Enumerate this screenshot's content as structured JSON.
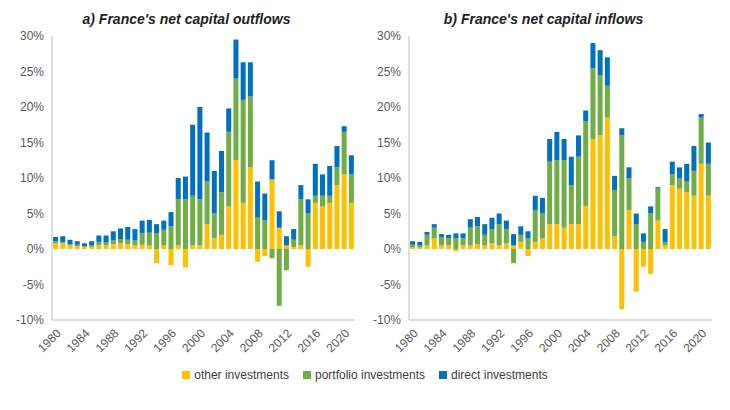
{
  "chart_data": [
    {
      "type": "bar",
      "title": "a) France's net capital outflows",
      "stacked": true,
      "grid": false,
      "legend": "bottom",
      "categories": [
        "1980",
        null,
        null,
        null,
        "1984",
        null,
        null,
        null,
        "1988",
        null,
        null,
        null,
        "1992",
        null,
        null,
        null,
        "1996",
        null,
        null,
        null,
        "2000",
        null,
        null,
        null,
        "2004",
        null,
        null,
        null,
        "2008",
        null,
        null,
        null,
        "2012",
        null,
        null,
        null,
        "2016",
        null,
        null,
        null,
        "2020",
        null
      ],
      "ylim": [
        -10,
        30
      ],
      "yticks": [
        {
          "value": -10,
          "label": "-10%"
        },
        {
          "value": -5,
          "label": "-5%"
        },
        {
          "value": 0,
          "label": "0%"
        },
        {
          "value": 5,
          "label": "5%"
        },
        {
          "value": 10,
          "label": "10%"
        },
        {
          "value": 15,
          "label": "15%"
        },
        {
          "value": 20,
          "label": "20%"
        },
        {
          "value": 25,
          "label": "25%"
        },
        {
          "value": 30,
          "label": "30%"
        }
      ],
      "series": [
        {
          "name": "other investments",
          "color": "#FFC000",
          "values": [
            0.8,
            0.8,
            0.5,
            0.4,
            0.3,
            0.3,
            0.5,
            0.5,
            0.7,
            0.8,
            0.7,
            0.5,
            0.6,
            0.5,
            -2.0,
            0.5,
            -2.3,
            0.5,
            -2.6,
            0.5,
            0.5,
            3.5,
            1.5,
            2.0,
            6.0,
            12.5,
            6.5,
            11.5,
            -1.8,
            -1.0,
            9.8,
            3.0,
            0.5,
            0.3,
            0.5,
            -2.5,
            6.5,
            6.0,
            6.5,
            9.0,
            10.5,
            6.5
          ]
        },
        {
          "name": "portfolio investments",
          "color": "#70AD47",
          "values": [
            0.3,
            0.2,
            0.2,
            0.2,
            0.1,
            0.2,
            0.5,
            0.4,
            0.5,
            0.6,
            0.6,
            0.7,
            1.6,
            1.8,
            2.2,
            2.2,
            3.2,
            6.5,
            7.0,
            7.0,
            6.5,
            6.0,
            3.5,
            6.0,
            10.5,
            11.5,
            14.5,
            10.0,
            4.5,
            4.0,
            -1.3,
            -8.0,
            -3.0,
            1.0,
            6.5,
            5.0,
            1.0,
            1.5,
            1.0,
            2.5,
            6.0,
            4.0
          ]
        },
        {
          "name": "direct investments",
          "color": "#0070C0",
          "values": [
            0.6,
            0.8,
            0.6,
            0.5,
            0.4,
            0.6,
            0.9,
            1.0,
            1.3,
            1.5,
            1.8,
            1.6,
            1.8,
            1.8,
            1.3,
            1.3,
            2.0,
            3.0,
            3.2,
            10.0,
            13.0,
            6.9,
            6.0,
            5.8,
            3.3,
            5.5,
            5.3,
            4.8,
            5.0,
            3.8,
            2.7,
            2.3,
            1.3,
            1.5,
            2.0,
            2.0,
            4.5,
            3.0,
            4.2,
            3.0,
            0.8,
            2.7
          ]
        }
      ]
    },
    {
      "type": "bar",
      "title": "b) France's net capital inflows",
      "stacked": true,
      "grid": false,
      "categories": [
        "1980",
        null,
        null,
        null,
        "1984",
        null,
        null,
        null,
        "1988",
        null,
        null,
        null,
        "1992",
        null,
        null,
        null,
        "1996",
        null,
        null,
        null,
        "2000",
        null,
        null,
        null,
        "2004",
        null,
        null,
        null,
        "2008",
        null,
        null,
        null,
        "2012",
        null,
        null,
        null,
        "2016",
        null,
        null,
        null,
        "2020",
        null
      ],
      "ylim": [
        -10,
        30
      ],
      "yticks": [
        {
          "value": -10,
          "label": "-10%"
        },
        {
          "value": -5,
          "label": "-5%"
        },
        {
          "value": 0,
          "label": "0%"
        },
        {
          "value": 5,
          "label": "5%"
        },
        {
          "value": 10,
          "label": "10%"
        },
        {
          "value": 15,
          "label": "15%"
        },
        {
          "value": 20,
          "label": "20%"
        },
        {
          "value": 25,
          "label": "25%"
        },
        {
          "value": 30,
          "label": "30%"
        }
      ],
      "series": [
        {
          "name": "other investments",
          "color": "#FFC000",
          "values": [
            0.2,
            0.2,
            0.5,
            1.5,
            0.5,
            0.5,
            -0.3,
            0.5,
            0.5,
            0.7,
            0.5,
            0.8,
            0.5,
            0.8,
            0.5,
            1.0,
            -1.0,
            1.0,
            1.5,
            3.5,
            3.5,
            3.0,
            3.5,
            3.5,
            6.0,
            15.5,
            16.0,
            18.5,
            1.8,
            -8.5,
            5.5,
            -6.0,
            -2.5,
            -3.5,
            4.0,
            0.5,
            9.0,
            8.5,
            8.0,
            7.5,
            12.0,
            7.5
          ]
        },
        {
          "name": "portfolio investments",
          "color": "#70AD47",
          "values": [
            0.4,
            0.3,
            1.5,
            1.5,
            1.2,
            1.0,
            1.5,
            1.0,
            2.5,
            2.5,
            1.5,
            2.0,
            3.0,
            2.0,
            -2.0,
            1.0,
            1.5,
            4.5,
            3.5,
            8.8,
            9.0,
            9.5,
            5.5,
            9.5,
            12.0,
            10.0,
            8.5,
            4.5,
            6.5,
            16.0,
            4.5,
            3.5,
            1.0,
            5.0,
            4.5,
            0.5,
            1.5,
            1.5,
            1.5,
            3.5,
            6.5,
            4.5
          ]
        },
        {
          "name": "direct investments",
          "color": "#0070C0",
          "values": [
            0.5,
            0.5,
            0.4,
            0.5,
            0.4,
            0.5,
            0.7,
            0.7,
            1.2,
            1.3,
            1.5,
            1.6,
            1.5,
            1.2,
            1.6,
            1.2,
            1.0,
            2.0,
            2.2,
            3.2,
            4.0,
            3.0,
            4.0,
            3.0,
            1.5,
            3.5,
            3.5,
            4.0,
            2.0,
            1.0,
            1.5,
            1.5,
            1.2,
            1.0,
            0.2,
            1.8,
            1.8,
            1.5,
            2.5,
            3.5,
            0.5,
            3.0
          ]
        }
      ]
    }
  ]
}
